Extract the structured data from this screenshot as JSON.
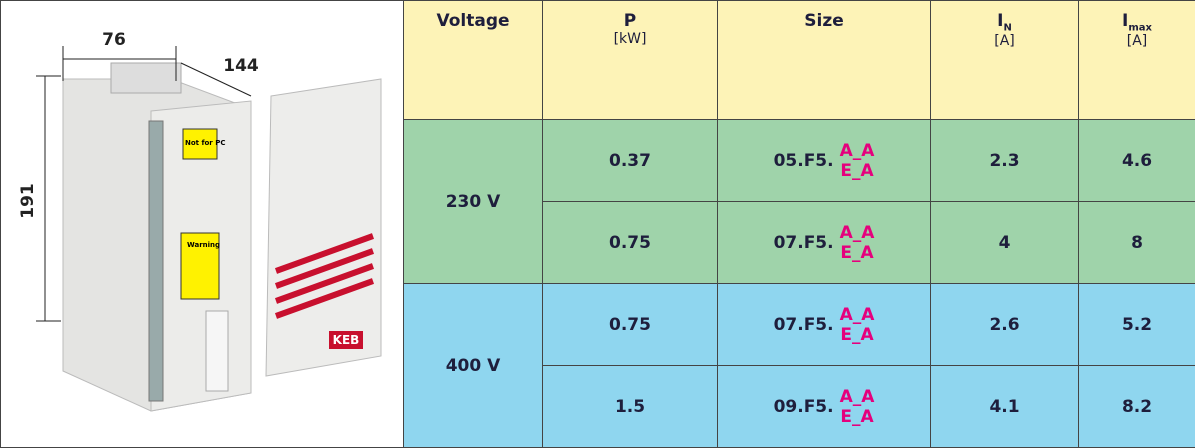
{
  "image": {
    "dimensions": {
      "width": "76",
      "depth": "144",
      "height": "191"
    },
    "labels": {
      "sticker": "Not for PC",
      "warning": "Warning",
      "brand": "KEB"
    }
  },
  "table": {
    "headers": [
      {
        "main": "Voltage"
      },
      {
        "main": "P",
        "unit": "[kW]"
      },
      {
        "main": "Size"
      },
      {
        "main": "I",
        "sub": "N",
        "unit": "[A]"
      },
      {
        "main": "I",
        "sub": "max",
        "unit": "[A]"
      }
    ],
    "groups": [
      {
        "voltage": "230 V",
        "rows": [
          {
            "power": "0.37",
            "size_prefix": "05.F5.",
            "size_options": [
              "A_A",
              "E_A"
            ],
            "i_n": "2.3",
            "i_max": "4.6"
          },
          {
            "power": "0.75",
            "size_prefix": "07.F5.",
            "size_options": [
              "A_A",
              "E_A"
            ],
            "i_n": "4",
            "i_max": "8"
          }
        ]
      },
      {
        "voltage": "400 V",
        "rows": [
          {
            "power": "0.75",
            "size_prefix": "07.F5.",
            "size_options": [
              "A_A",
              "E_A"
            ],
            "i_n": "2.6",
            "i_max": "5.2"
          },
          {
            "power": "1.5",
            "size_prefix": "09.F5.",
            "size_options": [
              "A_A",
              "E_A"
            ],
            "i_n": "4.1",
            "i_max": "8.2"
          }
        ]
      }
    ]
  }
}
